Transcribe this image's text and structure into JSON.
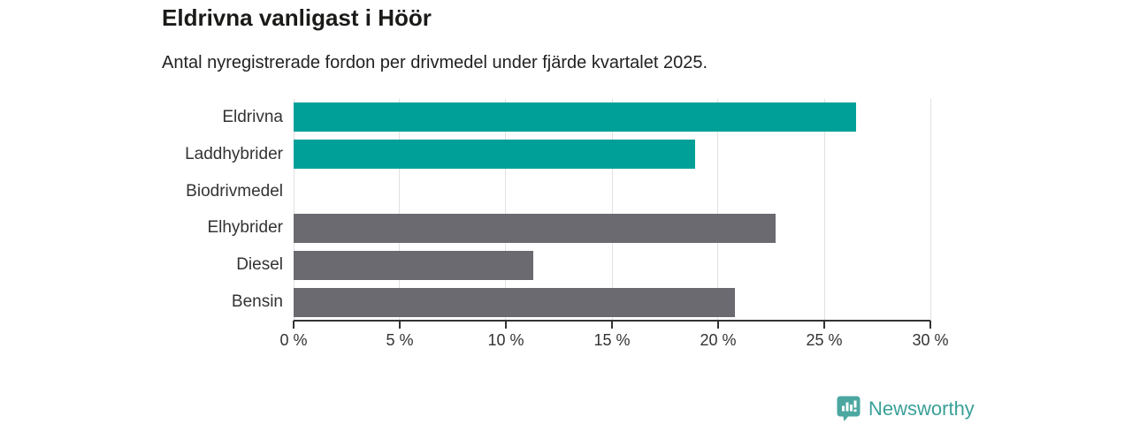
{
  "header": {
    "title": "Eldrivna vanligast i Höör",
    "subtitle": "Antal nyregistrerade fordon per drivmedel under fjärde kvartalet 2025."
  },
  "chart_data": {
    "type": "bar",
    "orientation": "horizontal",
    "title": "Eldrivna vanligast i Höör",
    "subtitle": "Antal nyregistrerade fordon per drivmedel under fjärde kvartalet 2025.",
    "categories": [
      "Eldrivna",
      "Laddhybrider",
      "Biodrivmedel",
      "Elhybrider",
      "Diesel",
      "Bensin"
    ],
    "values": [
      26.5,
      18.9,
      0,
      22.7,
      11.3,
      20.8
    ],
    "unit": "%",
    "bar_colors": [
      "#00a099",
      "#00a099",
      "#6b6a70",
      "#6b6a70",
      "#6b6a70",
      "#6b6a70"
    ],
    "xlabel": "",
    "ylabel": "",
    "xlim": [
      0,
      30
    ],
    "x_ticks": [
      0,
      5,
      10,
      15,
      20,
      25,
      30
    ],
    "x_tick_labels": [
      "0 %",
      "5 %",
      "10 %",
      "15 %",
      "20 %",
      "25 %",
      "30 %"
    ],
    "grid": "vertical-only",
    "legend": "none"
  },
  "colors": {
    "highlight_teal": "#00a099",
    "neutral_gray": "#6b6a70",
    "gridline": "#e1e1e1",
    "axis": "#333333",
    "title_text": "#1a1a18",
    "body_text": "#333333",
    "brand_teal": "#3aa099",
    "brand_icon_teal": "#4ba7a0"
  },
  "footer": {
    "brand": "Newsworthy"
  }
}
